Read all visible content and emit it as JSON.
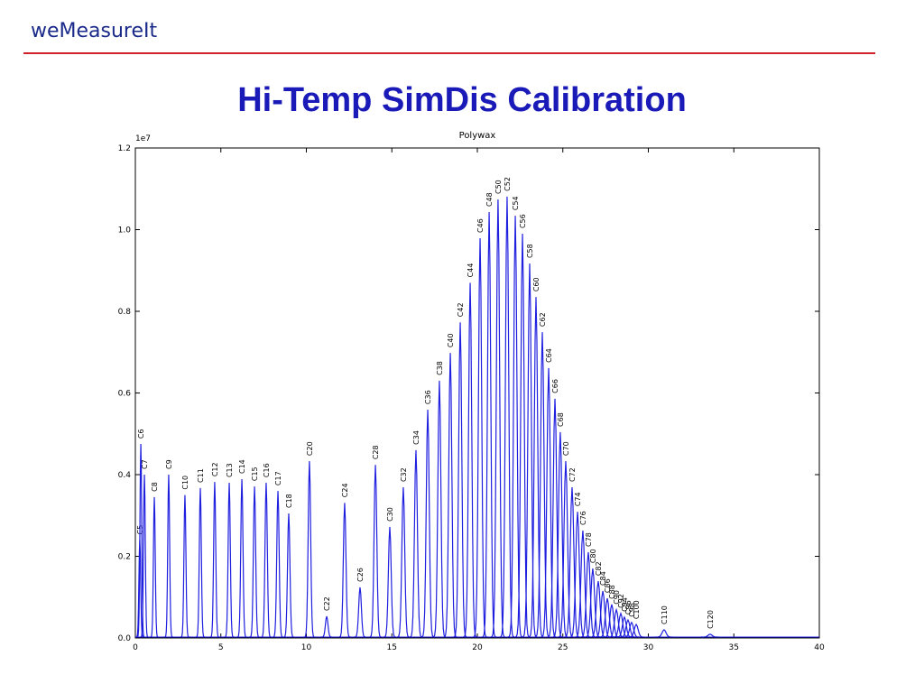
{
  "header": {
    "logo": "weMeasureIt",
    "title": "Hi-Temp SimDis Calibration"
  },
  "chart_data": {
    "type": "line",
    "title": "Polywax",
    "y_offset_label": "1e7",
    "color": "#1f1fe0",
    "categories": [
      "C5",
      "C6",
      "C7",
      "C8",
      "C9",
      "C10",
      "C11",
      "C12",
      "C13",
      "C14",
      "C15",
      "C16",
      "C17",
      "C18",
      "C20",
      "C22",
      "C24",
      "C26",
      "C28",
      "C30",
      "C32",
      "C34",
      "C36",
      "C38",
      "C40",
      "C42",
      "C44",
      "C46",
      "C48",
      "C50",
      "C52",
      "C54",
      "C56",
      "C58",
      "C60",
      "C62",
      "C64",
      "C66",
      "C68",
      "C70",
      "C72",
      "C74",
      "C76",
      "C78",
      "C80",
      "C82",
      "C84",
      "C86",
      "C88",
      "C90",
      "C92",
      "C94",
      "C96",
      "C98",
      "C100",
      "C110",
      "C120"
    ],
    "x": [
      0.26,
      0.32,
      0.53,
      1.11,
      1.95,
      2.9,
      3.8,
      4.64,
      5.49,
      6.23,
      6.97,
      7.65,
      8.34,
      8.97,
      10.18,
      11.19,
      12.24,
      13.14,
      14.04,
      14.88,
      15.67,
      16.41,
      17.1,
      17.78,
      18.42,
      19.0,
      19.58,
      20.16,
      20.69,
      21.21,
      21.74,
      22.22,
      22.64,
      23.06,
      23.43,
      23.8,
      24.17,
      24.54,
      24.85,
      25.17,
      25.54,
      25.86,
      26.17,
      26.49,
      26.75,
      27.07,
      27.34,
      27.6,
      27.86,
      28.13,
      28.39,
      28.6,
      28.81,
      29.02,
      29.29,
      30.92,
      33.61
    ],
    "values": [
      0.24,
      0.475,
      0.4,
      0.345,
      0.4,
      0.35,
      0.367,
      0.382,
      0.38,
      0.389,
      0.371,
      0.38,
      0.36,
      0.305,
      0.433,
      0.053,
      0.331,
      0.124,
      0.424,
      0.272,
      0.369,
      0.46,
      0.559,
      0.63,
      0.698,
      0.773,
      0.87,
      0.979,
      1.043,
      1.074,
      1.081,
      1.034,
      0.99,
      0.917,
      0.835,
      0.749,
      0.661,
      0.586,
      0.504,
      0.433,
      0.369,
      0.309,
      0.263,
      0.21,
      0.17,
      0.139,
      0.115,
      0.097,
      0.082,
      0.069,
      0.06,
      0.051,
      0.044,
      0.038,
      0.033,
      0.02,
      0.009
    ],
    "xlim": [
      0,
      40
    ],
    "xticks": [
      0,
      5,
      10,
      15,
      20,
      25,
      30,
      35,
      40
    ],
    "ylim": [
      0,
      1.2
    ],
    "yticks": [
      {
        "value": 0,
        "label": "0.0"
      },
      0.2,
      0.4,
      0.6,
      0.8,
      {
        "value": 1,
        "label": "1.0"
      },
      {
        "value": 1.2,
        "label": "1.2"
      }
    ]
  }
}
